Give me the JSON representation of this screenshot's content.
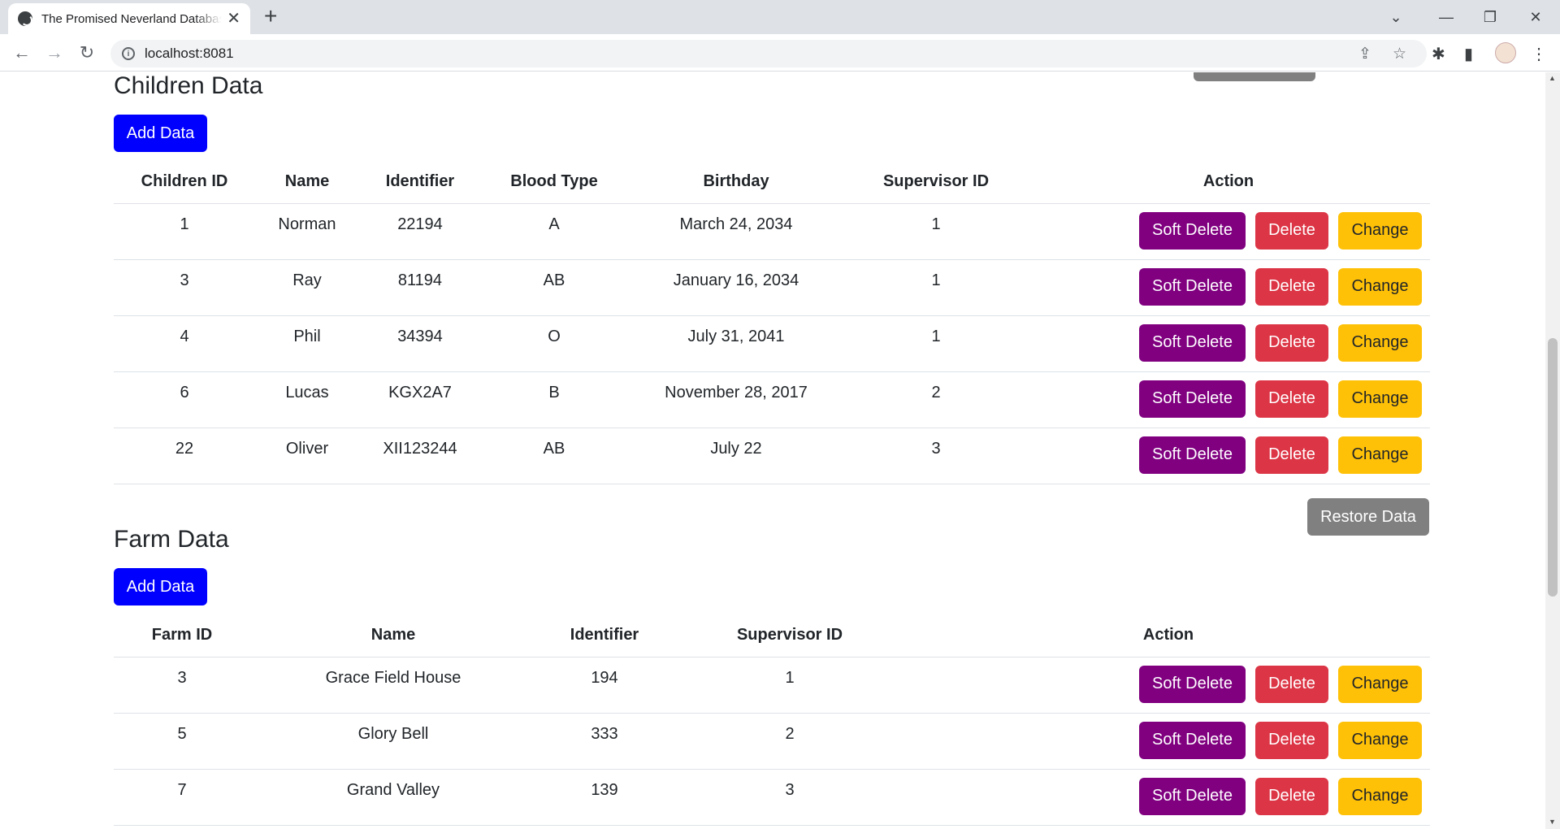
{
  "browser": {
    "tab_title": "The Promised Neverland Database",
    "url": "localhost:8081"
  },
  "children": {
    "heading": "Children Data",
    "add_label": "Add Data",
    "columns": [
      "Children ID",
      "Name",
      "Identifier",
      "Blood Type",
      "Birthday",
      "Supervisor ID",
      "Action"
    ],
    "rows": [
      {
        "id": "1",
        "name": "Norman",
        "identifier": "22194",
        "blood": "A",
        "birthday": "March 24, 2034",
        "supervisor": "1"
      },
      {
        "id": "3",
        "name": "Ray",
        "identifier": "81194",
        "blood": "AB",
        "birthday": "January 16, 2034",
        "supervisor": "1"
      },
      {
        "id": "4",
        "name": "Phil",
        "identifier": "34394",
        "blood": "O",
        "birthday": "July 31, 2041",
        "supervisor": "1"
      },
      {
        "id": "6",
        "name": "Lucas",
        "identifier": "KGX2A7",
        "blood": "B",
        "birthday": "November 28, 2017",
        "supervisor": "2"
      },
      {
        "id": "22",
        "name": "Oliver",
        "identifier": "XII123244",
        "blood": "AB",
        "birthday": "July 22",
        "supervisor": "3"
      }
    ]
  },
  "restore_label": "Restore Data",
  "farm": {
    "heading": "Farm Data",
    "add_label": "Add Data",
    "columns": [
      "Farm ID",
      "Name",
      "Identifier",
      "Supervisor ID",
      "Action"
    ],
    "rows": [
      {
        "id": "3",
        "name": "Grace Field House",
        "identifier": "194",
        "supervisor": "1"
      },
      {
        "id": "5",
        "name": "Glory Bell",
        "identifier": "333",
        "supervisor": "2"
      },
      {
        "id": "7",
        "name": "Grand Valley",
        "identifier": "139",
        "supervisor": "3"
      }
    ]
  },
  "actions": {
    "soft_delete": "Soft Delete",
    "delete": "Delete",
    "change": "Change"
  },
  "colors": {
    "add": "#0000ff",
    "soft_delete": "#800080",
    "delete": "#dc3545",
    "change": "#ffc107",
    "restore": "#808080"
  }
}
